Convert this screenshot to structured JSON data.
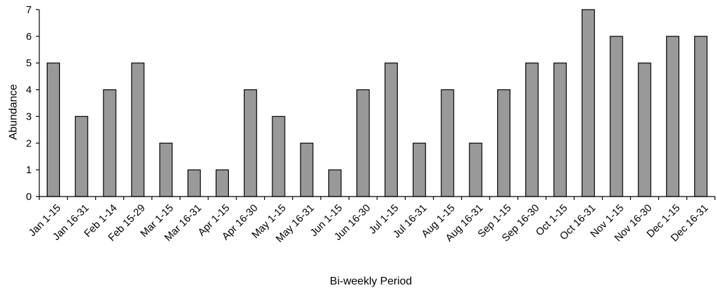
{
  "chart_data": {
    "type": "bar",
    "title": "",
    "xlabel": "Bi-weekly Period",
    "ylabel": "Abundance",
    "ylim": [
      0,
      7
    ],
    "yticks": [
      0,
      1,
      2,
      3,
      4,
      5,
      6,
      7
    ],
    "grid": false,
    "legend": "none",
    "categories": [
      "Jan 1-15",
      "Jan 16-31",
      "Feb 1-14",
      "Feb 15-29",
      "Mar 1-15",
      "Mar 16-31",
      "Apr 1-15",
      "Apr 16-30",
      "May 1-15",
      "May 16-31",
      "Jun 1-15",
      "Jun 16-30",
      "Jul 1-15",
      "Jul 16-31",
      "Aug 1-15",
      "Aug 16-31",
      "Sep 1-15",
      "Sep 16-30",
      "Oct 1-15",
      "Oct 16-31",
      "Nov 1-15",
      "Nov 16-30",
      "Dec 1-15",
      "Dec 16-31"
    ],
    "values": [
      5,
      3,
      4,
      5,
      2,
      1,
      1,
      4,
      3,
      2,
      1,
      4,
      5,
      2,
      4,
      2,
      4,
      5,
      5,
      7,
      6,
      5,
      6,
      6
    ],
    "colors": {
      "bar_fill": "#999999",
      "bar_stroke": "#000000",
      "axis": "#000000"
    }
  }
}
